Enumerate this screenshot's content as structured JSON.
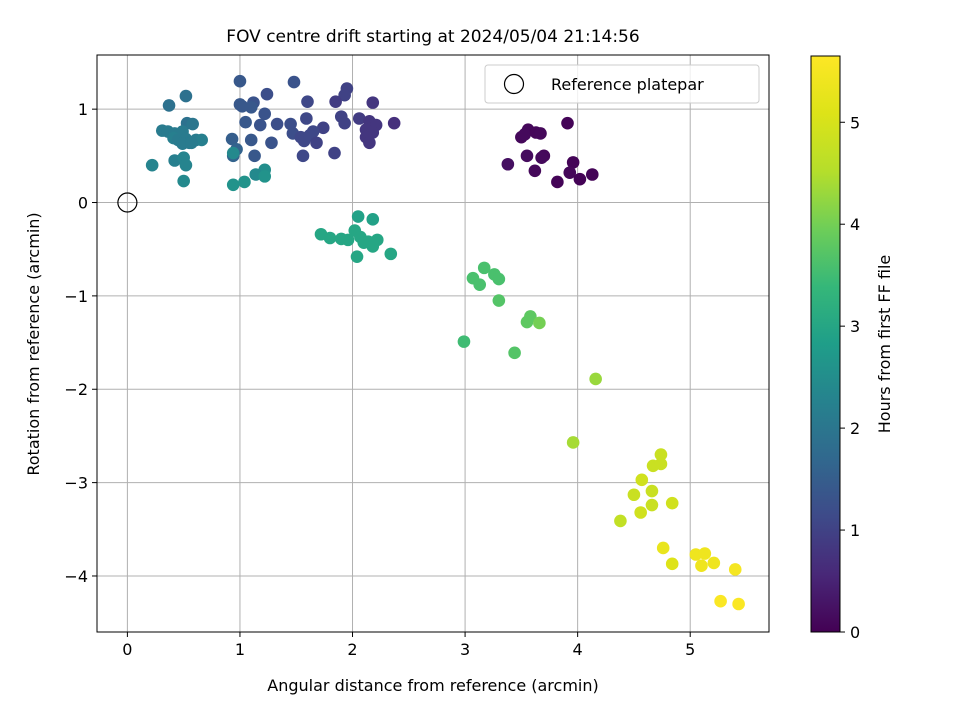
{
  "chart_data": {
    "type": "scatter",
    "title": "FOV centre drift starting at 2024/05/04 21:14:56",
    "xlabel": "Angular distance from reference (arcmin)",
    "ylabel": "Rotation from reference (arcmin)",
    "xlim": [
      -0.27,
      5.7
    ],
    "ylim": [
      -4.6,
      1.58
    ],
    "xticks": [
      0,
      1,
      2,
      3,
      4,
      5
    ],
    "yticks": [
      -4,
      -3,
      -2,
      -1,
      0,
      1
    ],
    "grid": true,
    "legend": {
      "position": "top-right",
      "entries": [
        "Reference platepar"
      ]
    },
    "colorbar": {
      "label": "Hours from first FF file",
      "min": 0,
      "max": 5.65,
      "ticks": [
        0,
        1,
        2,
        3,
        4,
        5
      ],
      "colormap": "viridis"
    },
    "reference_point": {
      "x": 0,
      "y": 0
    },
    "series": [
      {
        "points": [
          {
            "x": 3.91,
            "y": 0.85,
            "c": 0.05
          },
          {
            "x": 3.56,
            "y": 0.78,
            "c": 0.1
          },
          {
            "x": 3.5,
            "y": 0.7,
            "c": 0.1
          },
          {
            "x": 3.53,
            "y": 0.73,
            "c": 0.12
          },
          {
            "x": 3.63,
            "y": 0.75,
            "c": 0.08
          },
          {
            "x": 3.67,
            "y": 0.74,
            "c": 0.1
          },
          {
            "x": 3.55,
            "y": 0.5,
            "c": 0.15
          },
          {
            "x": 3.7,
            "y": 0.5,
            "c": 0.1
          },
          {
            "x": 3.68,
            "y": 0.48,
            "c": 0.12
          },
          {
            "x": 3.38,
            "y": 0.41,
            "c": 0.2
          },
          {
            "x": 3.62,
            "y": 0.34,
            "c": 0.1
          },
          {
            "x": 3.96,
            "y": 0.43,
            "c": 0.05
          },
          {
            "x": 3.93,
            "y": 0.32,
            "c": 0.08
          },
          {
            "x": 3.82,
            "y": 0.22,
            "c": 0.05
          },
          {
            "x": 4.02,
            "y": 0.25,
            "c": 0.03
          },
          {
            "x": 4.13,
            "y": 0.3,
            "c": 0.05
          },
          {
            "x": 1.0,
            "y": 1.3,
            "c": 1.4
          },
          {
            "x": 1.48,
            "y": 1.29,
            "c": 1.3
          },
          {
            "x": 1.95,
            "y": 1.22,
            "c": 1.0
          },
          {
            "x": 1.93,
            "y": 1.15,
            "c": 1.0
          },
          {
            "x": 1.85,
            "y": 1.08,
            "c": 0.9
          },
          {
            "x": 1.24,
            "y": 1.16,
            "c": 1.2
          },
          {
            "x": 1.12,
            "y": 1.07,
            "c": 1.3
          },
          {
            "x": 1.1,
            "y": 1.02,
            "c": 1.4
          },
          {
            "x": 1.0,
            "y": 1.05,
            "c": 1.4
          },
          {
            "x": 1.02,
            "y": 1.03,
            "c": 1.4
          },
          {
            "x": 1.6,
            "y": 1.08,
            "c": 1.1
          },
          {
            "x": 2.18,
            "y": 1.07,
            "c": 0.8
          },
          {
            "x": 1.22,
            "y": 0.95,
            "c": 1.3
          },
          {
            "x": 1.33,
            "y": 0.84,
            "c": 1.2
          },
          {
            "x": 1.45,
            "y": 0.84,
            "c": 1.2
          },
          {
            "x": 1.59,
            "y": 0.9,
            "c": 1.1
          },
          {
            "x": 1.18,
            "y": 0.83,
            "c": 1.3
          },
          {
            "x": 1.05,
            "y": 0.86,
            "c": 1.4
          },
          {
            "x": 1.74,
            "y": 0.8,
            "c": 1.0
          },
          {
            "x": 1.65,
            "y": 0.76,
            "c": 1.1
          },
          {
            "x": 1.9,
            "y": 0.92,
            "c": 1.0
          },
          {
            "x": 1.93,
            "y": 0.85,
            "c": 1.0
          },
          {
            "x": 2.06,
            "y": 0.9,
            "c": 0.9
          },
          {
            "x": 2.15,
            "y": 0.87,
            "c": 0.8
          },
          {
            "x": 2.21,
            "y": 0.83,
            "c": 0.8
          },
          {
            "x": 2.37,
            "y": 0.85,
            "c": 0.7
          },
          {
            "x": 2.12,
            "y": 0.78,
            "c": 0.8
          },
          {
            "x": 2.18,
            "y": 0.75,
            "c": 0.8
          },
          {
            "x": 1.47,
            "y": 0.74,
            "c": 1.2
          },
          {
            "x": 1.54,
            "y": 0.7,
            "c": 1.1
          },
          {
            "x": 1.57,
            "y": 0.66,
            "c": 1.1
          },
          {
            "x": 1.62,
            "y": 0.72,
            "c": 1.1
          },
          {
            "x": 1.68,
            "y": 0.64,
            "c": 1.0
          },
          {
            "x": 1.28,
            "y": 0.64,
            "c": 1.3
          },
          {
            "x": 1.1,
            "y": 0.67,
            "c": 1.4
          },
          {
            "x": 0.93,
            "y": 0.68,
            "c": 1.5
          },
          {
            "x": 2.12,
            "y": 0.7,
            "c": 0.8
          },
          {
            "x": 2.15,
            "y": 0.64,
            "c": 0.8
          },
          {
            "x": 0.97,
            "y": 0.57,
            "c": 1.6
          },
          {
            "x": 0.94,
            "y": 0.5,
            "c": 1.6
          },
          {
            "x": 1.13,
            "y": 0.5,
            "c": 1.4
          },
          {
            "x": 1.56,
            "y": 0.5,
            "c": 1.1
          },
          {
            "x": 1.84,
            "y": 0.53,
            "c": 1.0
          },
          {
            "x": 0.37,
            "y": 1.04,
            "c": 1.9
          },
          {
            "x": 0.52,
            "y": 1.14,
            "c": 1.9
          },
          {
            "x": 0.53,
            "y": 0.85,
            "c": 1.9
          },
          {
            "x": 0.58,
            "y": 0.84,
            "c": 2.0
          },
          {
            "x": 0.31,
            "y": 0.77,
            "c": 2.1
          },
          {
            "x": 0.36,
            "y": 0.76,
            "c": 2.1
          },
          {
            "x": 0.42,
            "y": 0.74,
            "c": 2.1
          },
          {
            "x": 0.49,
            "y": 0.76,
            "c": 2.1
          },
          {
            "x": 0.41,
            "y": 0.69,
            "c": 2.2
          },
          {
            "x": 0.45,
            "y": 0.67,
            "c": 2.1
          },
          {
            "x": 0.52,
            "y": 0.68,
            "c": 2.1
          },
          {
            "x": 0.55,
            "y": 0.64,
            "c": 2.1
          },
          {
            "x": 0.61,
            "y": 0.67,
            "c": 2.1
          },
          {
            "x": 0.66,
            "y": 0.67,
            "c": 2.2
          },
          {
            "x": 0.49,
            "y": 0.63,
            "c": 2.1
          },
          {
            "x": 0.57,
            "y": 0.64,
            "c": 2.1
          },
          {
            "x": 0.42,
            "y": 0.45,
            "c": 2.2
          },
          {
            "x": 0.5,
            "y": 0.48,
            "c": 2.3
          },
          {
            "x": 0.52,
            "y": 0.4,
            "c": 2.3
          },
          {
            "x": 0.22,
            "y": 0.4,
            "c": 2.3
          },
          {
            "x": 0.5,
            "y": 0.23,
            "c": 2.4
          },
          {
            "x": 0.94,
            "y": 0.53,
            "c": 2.4
          },
          {
            "x": 1.22,
            "y": 0.35,
            "c": 2.5
          },
          {
            "x": 1.14,
            "y": 0.3,
            "c": 2.4
          },
          {
            "x": 0.94,
            "y": 0.19,
            "c": 2.6
          },
          {
            "x": 1.04,
            "y": 0.22,
            "c": 2.6
          },
          {
            "x": 1.22,
            "y": 0.28,
            "c": 2.6
          },
          {
            "x": 2.05,
            "y": -0.15,
            "c": 2.9
          },
          {
            "x": 2.18,
            "y": -0.18,
            "c": 2.9
          },
          {
            "x": 1.72,
            "y": -0.34,
            "c": 3.0
          },
          {
            "x": 1.8,
            "y": -0.38,
            "c": 3.0
          },
          {
            "x": 1.9,
            "y": -0.39,
            "c": 3.0
          },
          {
            "x": 1.96,
            "y": -0.4,
            "c": 3.0
          },
          {
            "x": 2.02,
            "y": -0.3,
            "c": 3.0
          },
          {
            "x": 2.07,
            "y": -0.37,
            "c": 3.0
          },
          {
            "x": 2.1,
            "y": -0.43,
            "c": 3.0
          },
          {
            "x": 2.14,
            "y": -0.42,
            "c": 3.0
          },
          {
            "x": 2.18,
            "y": -0.47,
            "c": 3.0
          },
          {
            "x": 2.22,
            "y": -0.4,
            "c": 3.0
          },
          {
            "x": 2.04,
            "y": -0.58,
            "c": 3.0
          },
          {
            "x": 2.34,
            "y": -0.55,
            "c": 3.0
          },
          {
            "x": 3.07,
            "y": -0.81,
            "c": 3.6
          },
          {
            "x": 3.17,
            "y": -0.7,
            "c": 3.6
          },
          {
            "x": 3.26,
            "y": -0.77,
            "c": 3.6
          },
          {
            "x": 3.3,
            "y": -0.82,
            "c": 3.6
          },
          {
            "x": 3.13,
            "y": -0.88,
            "c": 3.6
          },
          {
            "x": 3.3,
            "y": -1.05,
            "c": 3.7
          },
          {
            "x": 3.58,
            "y": -1.22,
            "c": 3.8
          },
          {
            "x": 3.55,
            "y": -1.28,
            "c": 3.8
          },
          {
            "x": 3.66,
            "y": -1.29,
            "c": 4.0
          },
          {
            "x": 2.99,
            "y": -1.49,
            "c": 3.5
          },
          {
            "x": 3.44,
            "y": -1.61,
            "c": 3.7
          },
          {
            "x": 4.16,
            "y": -1.89,
            "c": 4.3
          },
          {
            "x": 3.96,
            "y": -2.57,
            "c": 4.4
          },
          {
            "x": 4.74,
            "y": -2.7,
            "c": 4.8
          },
          {
            "x": 4.67,
            "y": -2.82,
            "c": 4.8
          },
          {
            "x": 4.74,
            "y": -2.8,
            "c": 4.8
          },
          {
            "x": 4.57,
            "y": -2.97,
            "c": 4.9
          },
          {
            "x": 4.66,
            "y": -3.09,
            "c": 4.8
          },
          {
            "x": 4.5,
            "y": -3.13,
            "c": 4.8
          },
          {
            "x": 4.84,
            "y": -3.22,
            "c": 4.9
          },
          {
            "x": 4.66,
            "y": -3.24,
            "c": 4.8
          },
          {
            "x": 4.56,
            "y": -3.32,
            "c": 4.9
          },
          {
            "x": 4.38,
            "y": -3.41,
            "c": 4.7
          },
          {
            "x": 4.76,
            "y": -3.7,
            "c": 5.3
          },
          {
            "x": 5.05,
            "y": -3.77,
            "c": 5.4
          },
          {
            "x": 5.13,
            "y": -3.76,
            "c": 5.4
          },
          {
            "x": 5.21,
            "y": -3.86,
            "c": 5.4
          },
          {
            "x": 5.1,
            "y": -3.89,
            "c": 5.4
          },
          {
            "x": 4.84,
            "y": -3.87,
            "c": 5.1
          },
          {
            "x": 5.4,
            "y": -3.93,
            "c": 5.5
          },
          {
            "x": 5.27,
            "y": -4.27,
            "c": 5.6
          },
          {
            "x": 5.43,
            "y": -4.3,
            "c": 5.6
          }
        ]
      }
    ]
  }
}
